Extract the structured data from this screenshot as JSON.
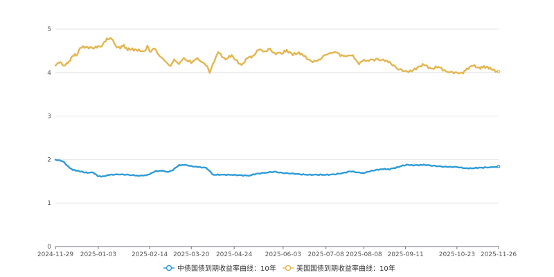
{
  "chart_data": {
    "type": "line",
    "title": "",
    "xlabel": "",
    "ylabel": "",
    "x_tick_labels": [
      "2024-11-29",
      "2025-01-03",
      "2025-02-14",
      "2025-03-20",
      "2025-04-24",
      "2025-06-03",
      "2025-07-08",
      "2025-08-08",
      "2025-09-11",
      "2025-10-23",
      "2025-11-26"
    ],
    "y_ticks": [
      0,
      1,
      2,
      3,
      4,
      5
    ],
    "ylim": [
      0,
      5
    ],
    "xlim": [
      "2024-11-29",
      "2025-11-26"
    ],
    "grid": true,
    "legend_position": "bottom",
    "series": [
      {
        "name": "中债国债到期收益率曲线：10年",
        "color": "#2e9bd6",
        "points": [
          [
            "2024-11-29",
            2.0
          ],
          [
            "2024-12-05",
            1.96
          ],
          [
            "2024-12-10",
            1.83
          ],
          [
            "2024-12-13",
            1.76
          ],
          [
            "2024-12-18",
            1.74
          ],
          [
            "2024-12-23",
            1.7
          ],
          [
            "2024-12-30",
            1.7
          ],
          [
            "2025-01-03",
            1.61
          ],
          [
            "2025-01-08",
            1.62
          ],
          [
            "2025-01-13",
            1.65
          ],
          [
            "2025-01-20",
            1.66
          ],
          [
            "2025-01-27",
            1.65
          ],
          [
            "2025-02-05",
            1.63
          ],
          [
            "2025-02-10",
            1.63
          ],
          [
            "2025-02-14",
            1.67
          ],
          [
            "2025-02-19",
            1.73
          ],
          [
            "2025-02-24",
            1.75
          ],
          [
            "2025-02-28",
            1.71
          ],
          [
            "2025-03-05",
            1.76
          ],
          [
            "2025-03-10",
            1.87
          ],
          [
            "2025-03-14",
            1.88
          ],
          [
            "2025-03-20",
            1.85
          ],
          [
            "2025-03-25",
            1.83
          ],
          [
            "2025-04-01",
            1.81
          ],
          [
            "2025-04-03",
            1.76
          ],
          [
            "2025-04-07",
            1.65
          ],
          [
            "2025-04-14",
            1.65
          ],
          [
            "2025-04-21",
            1.65
          ],
          [
            "2025-04-28",
            1.64
          ],
          [
            "2025-05-06",
            1.63
          ],
          [
            "2025-05-12",
            1.67
          ],
          [
            "2025-05-20",
            1.7
          ],
          [
            "2025-05-27",
            1.72
          ],
          [
            "2025-06-03",
            1.69
          ],
          [
            "2025-06-10",
            1.68
          ],
          [
            "2025-06-17",
            1.66
          ],
          [
            "2025-06-24",
            1.65
          ],
          [
            "2025-07-01",
            1.65
          ],
          [
            "2025-07-08",
            1.65
          ],
          [
            "2025-07-15",
            1.66
          ],
          [
            "2025-07-22",
            1.69
          ],
          [
            "2025-07-28",
            1.73
          ],
          [
            "2025-08-04",
            1.7
          ],
          [
            "2025-08-08",
            1.69
          ],
          [
            "2025-08-14",
            1.74
          ],
          [
            "2025-08-20",
            1.77
          ],
          [
            "2025-08-25",
            1.78
          ],
          [
            "2025-08-29",
            1.78
          ],
          [
            "2025-09-04",
            1.82
          ],
          [
            "2025-09-11",
            1.88
          ],
          [
            "2025-09-16",
            1.87
          ],
          [
            "2025-09-22",
            1.87
          ],
          [
            "2025-09-26",
            1.88
          ],
          [
            "2025-10-03",
            1.86
          ],
          [
            "2025-10-10",
            1.84
          ],
          [
            "2025-10-16",
            1.83
          ],
          [
            "2025-10-23",
            1.83
          ],
          [
            "2025-10-29",
            1.8
          ],
          [
            "2025-11-04",
            1.8
          ],
          [
            "2025-11-10",
            1.81
          ],
          [
            "2025-11-17",
            1.82
          ],
          [
            "2025-11-21",
            1.82
          ],
          [
            "2025-11-26",
            1.84
          ]
        ]
      },
      {
        "name": "美国国债到期收益率曲线：10年",
        "color": "#e4b54e",
        "points": [
          [
            "2024-11-29",
            4.18
          ],
          [
            "2024-12-03",
            4.23
          ],
          [
            "2024-12-06",
            4.17
          ],
          [
            "2024-12-09",
            4.2
          ],
          [
            "2024-12-13",
            4.39
          ],
          [
            "2024-12-17",
            4.41
          ],
          [
            "2024-12-19",
            4.57
          ],
          [
            "2024-12-24",
            4.59
          ],
          [
            "2024-12-30",
            4.56
          ],
          [
            "2025-01-03",
            4.6
          ],
          [
            "2025-01-06",
            4.62
          ],
          [
            "2025-01-10",
            4.77
          ],
          [
            "2025-01-14",
            4.79
          ],
          [
            "2025-01-17",
            4.61
          ],
          [
            "2025-01-21",
            4.57
          ],
          [
            "2025-01-24",
            4.62
          ],
          [
            "2025-01-27",
            4.53
          ],
          [
            "2025-01-31",
            4.54
          ],
          [
            "2025-02-04",
            4.51
          ],
          [
            "2025-02-10",
            4.49
          ],
          [
            "2025-02-12",
            4.62
          ],
          [
            "2025-02-14",
            4.48
          ],
          [
            "2025-02-18",
            4.55
          ],
          [
            "2025-02-21",
            4.43
          ],
          [
            "2025-02-26",
            4.26
          ],
          [
            "2025-03-03",
            4.17
          ],
          [
            "2025-03-06",
            4.28
          ],
          [
            "2025-03-10",
            4.22
          ],
          [
            "2025-03-14",
            4.31
          ],
          [
            "2025-03-20",
            4.24
          ],
          [
            "2025-03-25",
            4.31
          ],
          [
            "2025-03-28",
            4.27
          ],
          [
            "2025-04-02",
            4.13
          ],
          [
            "2025-04-04",
            4.01
          ],
          [
            "2025-04-09",
            4.34
          ],
          [
            "2025-04-11",
            4.48
          ],
          [
            "2025-04-15",
            4.34
          ],
          [
            "2025-04-18",
            4.32
          ],
          [
            "2025-04-22",
            4.4
          ],
          [
            "2025-04-24",
            4.32
          ],
          [
            "2025-04-30",
            4.17
          ],
          [
            "2025-05-05",
            4.34
          ],
          [
            "2025-05-09",
            4.37
          ],
          [
            "2025-05-14",
            4.53
          ],
          [
            "2025-05-20",
            4.48
          ],
          [
            "2025-05-22",
            4.56
          ],
          [
            "2025-05-27",
            4.44
          ],
          [
            "2025-06-03",
            4.46
          ],
          [
            "2025-06-06",
            4.51
          ],
          [
            "2025-06-11",
            4.41
          ],
          [
            "2025-06-16",
            4.46
          ],
          [
            "2025-06-20",
            4.38
          ],
          [
            "2025-06-26",
            4.26
          ],
          [
            "2025-07-01",
            4.26
          ],
          [
            "2025-07-08",
            4.42
          ],
          [
            "2025-07-11",
            4.43
          ],
          [
            "2025-07-15",
            4.49
          ],
          [
            "2025-07-21",
            4.38
          ],
          [
            "2025-07-25",
            4.4
          ],
          [
            "2025-07-30",
            4.37
          ],
          [
            "2025-08-04",
            4.22
          ],
          [
            "2025-08-08",
            4.27
          ],
          [
            "2025-08-12",
            4.29
          ],
          [
            "2025-08-19",
            4.3
          ],
          [
            "2025-08-25",
            4.28
          ],
          [
            "2025-08-29",
            4.23
          ],
          [
            "2025-09-05",
            4.08
          ],
          [
            "2025-09-11",
            4.03
          ],
          [
            "2025-09-16",
            4.03
          ],
          [
            "2025-09-22",
            4.14
          ],
          [
            "2025-09-26",
            4.18
          ],
          [
            "2025-10-02",
            4.09
          ],
          [
            "2025-10-08",
            4.13
          ],
          [
            "2025-10-14",
            4.03
          ],
          [
            "2025-10-17",
            4.01
          ],
          [
            "2025-10-23",
            4.0
          ],
          [
            "2025-10-28",
            3.98
          ],
          [
            "2025-10-31",
            4.09
          ],
          [
            "2025-11-05",
            4.16
          ],
          [
            "2025-11-10",
            4.11
          ],
          [
            "2025-11-13",
            4.12
          ],
          [
            "2025-11-17",
            4.13
          ],
          [
            "2025-11-21",
            4.06
          ],
          [
            "2025-11-26",
            4.02
          ]
        ]
      }
    ]
  }
}
